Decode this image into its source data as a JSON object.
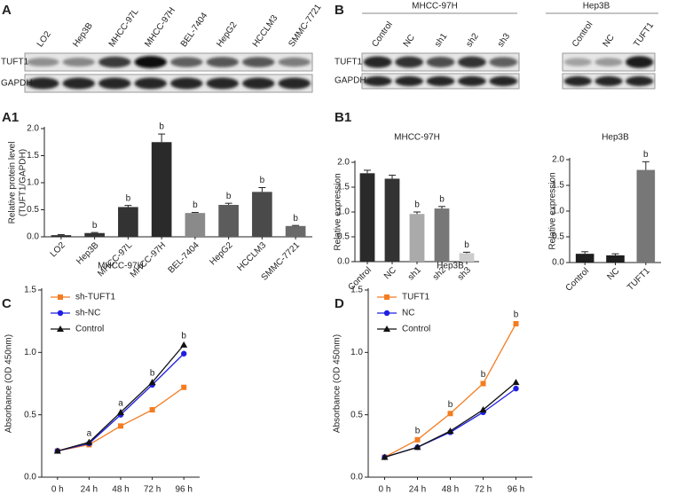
{
  "blots": {
    "A": {
      "panel": "A",
      "lanes": [
        "LO2",
        "Hep3B",
        "MHCC-97L",
        "MHCC-97H",
        "BEL-7404",
        "HepG2",
        "HCCLM3",
        "SMMC-7721"
      ],
      "rows": [
        "TUFT1",
        "GAPDH"
      ]
    },
    "B": {
      "panel": "B",
      "rows": [
        "TUFT1",
        "GAPDH"
      ],
      "groups": [
        {
          "title": "MHCC-97H",
          "lanes": [
            "Control",
            "NC",
            "sh1",
            "sh2",
            "sh3"
          ]
        },
        {
          "title": "Hep3B",
          "lanes": [
            "Control",
            "NC",
            "TUFT1"
          ]
        }
      ]
    }
  },
  "chart_data": [
    {
      "type": "bar",
      "panel": "A1",
      "y_label": [
        "Relative protein level",
        "(TUFT1/GAPDH)"
      ],
      "categories": [
        "LO2",
        "Hep3B",
        "MHCC-97L",
        "MHCC-97H",
        "BEL-7404",
        "HepG2",
        "HCCLM3",
        "SMMC-7721"
      ],
      "values": [
        0.03,
        0.07,
        0.55,
        1.75,
        0.44,
        0.59,
        0.83,
        0.2
      ],
      "errors": [
        0.01,
        0.01,
        0.03,
        0.15,
        0.01,
        0.03,
        0.08,
        0.01
      ],
      "colors": [
        "#2a2a2a",
        "#333333",
        "#333333",
        "#2a2a2a",
        "#8a8a8a",
        "#5c5c5c",
        "#4a4a4a",
        "#6a6a6a"
      ],
      "labels": [
        null,
        "b",
        "b",
        "b",
        "b",
        "b",
        "b",
        "b"
      ],
      "ylim": [
        0,
        2
      ],
      "yticks": [
        {
          "value": 0,
          "label": "0.0"
        },
        0.5,
        {
          "value": 1,
          "label": "1.0"
        },
        1.5,
        {
          "value": 2,
          "label": "2.0"
        }
      ]
    },
    {
      "type": "bar",
      "panel": "B1",
      "title": "MHCC-97H",
      "y_label": "Relative expression",
      "categories": [
        "Control",
        "NC",
        "sh1",
        "sh2",
        "sh3"
      ],
      "values": [
        1.78,
        1.67,
        0.96,
        1.07,
        0.17
      ],
      "errors": [
        0.06,
        0.07,
        0.04,
        0.04,
        0.02
      ],
      "colors": [
        "#2a2a2a",
        "#333333",
        "#aaaaaa",
        "#777777",
        "#cccccc"
      ],
      "labels": [
        null,
        null,
        "b",
        "b",
        "b"
      ],
      "ylim": [
        0,
        2
      ],
      "yticks": [
        {
          "value": 0,
          "label": "0.0"
        },
        0.5,
        {
          "value": 1,
          "label": "1.0"
        },
        1.5,
        {
          "value": 2,
          "label": "2.0"
        }
      ]
    },
    {
      "type": "bar",
      "title": "Hep3B",
      "y_label": "Relative expression",
      "categories": [
        "Control",
        "NC",
        "TUFT1"
      ],
      "values": [
        0.17,
        0.14,
        1.8
      ],
      "errors": [
        0.04,
        0.03,
        0.16
      ],
      "colors": [
        "#1e1e1e",
        "#1e1e1e",
        "#777777"
      ],
      "labels": [
        null,
        null,
        "b"
      ],
      "ylim": [
        0,
        2
      ],
      "yticks": [
        {
          "value": 0,
          "label": "0.0"
        },
        0.5,
        {
          "value": 1,
          "label": "1.0"
        },
        1.5,
        {
          "value": 2,
          "label": "2.0"
        }
      ]
    },
    {
      "type": "line",
      "panel": "C",
      "title": "MHCC-97H",
      "y_label": "Absorbance (OD 450nm)",
      "categories": [
        "0 h",
        "24 h",
        "48 h",
        "72 h",
        "96 h"
      ],
      "series": [
        {
          "name": "sh-TUFT1",
          "color": "#f47c20",
          "marker": "square",
          "values": [
            0.21,
            0.26,
            0.41,
            0.54,
            0.72
          ]
        },
        {
          "name": "sh-NC",
          "color": "#1f1fe0",
          "marker": "circle",
          "values": [
            0.21,
            0.27,
            0.5,
            0.74,
            0.99
          ]
        },
        {
          "name": "Control",
          "color": "#111111",
          "marker": "triangle",
          "values": [
            0.21,
            0.28,
            0.52,
            0.76,
            1.06
          ]
        }
      ],
      "labels": [
        null,
        "a",
        "a",
        "b",
        "b"
      ],
      "legend": "upper-left",
      "ylim": [
        0,
        1.5
      ],
      "yticks": [
        {
          "value": 0,
          "label": "0.0"
        },
        0.5,
        {
          "value": 1,
          "label": "1.0"
        },
        1.5
      ]
    },
    {
      "type": "line",
      "panel": "D",
      "title": "Hep3B",
      "y_label": "Absorbance (OD 450nm)",
      "categories": [
        "0 h",
        "24 h",
        "48 h",
        "72 h",
        "96 h"
      ],
      "series": [
        {
          "name": "TUFT1",
          "color": "#f47c20",
          "marker": "square",
          "values": [
            0.16,
            0.3,
            0.51,
            0.75,
            1.23
          ]
        },
        {
          "name": "NC",
          "color": "#1f1fe0",
          "marker": "circle",
          "values": [
            0.16,
            0.24,
            0.36,
            0.52,
            0.71
          ]
        },
        {
          "name": "Control",
          "color": "#111111",
          "marker": "triangle",
          "values": [
            0.16,
            0.24,
            0.37,
            0.54,
            0.76
          ]
        }
      ],
      "labels": [
        null,
        "b",
        "b",
        "b",
        "b"
      ],
      "legend": "upper-left",
      "ylim": [
        0,
        1.5
      ],
      "yticks": [
        {
          "value": 0,
          "label": "0.0"
        },
        0.5,
        {
          "value": 1,
          "label": "1.0"
        },
        1.5
      ]
    }
  ]
}
